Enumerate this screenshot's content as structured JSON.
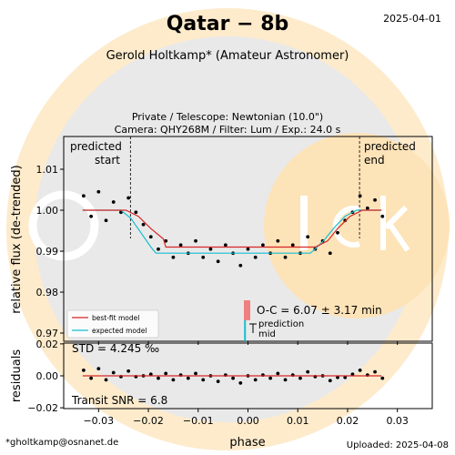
{
  "header": {
    "title": "Qatar − 8b",
    "date": "2025-04-01",
    "observer": "Gerold Holtkamp* (Amateur Astronomer)",
    "subtitle_line1": "Private / Telescope: Newtonian (10.0\")",
    "subtitle_line2": "Camera: QHY268M / Filter: Lum / Exp.: 24.0 s"
  },
  "footer": {
    "email": "*gholtkamp@osnanet.de",
    "uploaded": "Uploaded: 2025-04-08"
  },
  "watermark": {
    "text": "exoclock",
    "colors": [
      "#fde9c9",
      "#e8e8e8"
    ]
  },
  "annotations": {
    "predicted_start": [
      "predicted",
      "start"
    ],
    "predicted_end": [
      "predicted",
      "end"
    ],
    "oc": "O-C = 6.07 ± 3.17 min",
    "prediction_mid": [
      "prediction",
      "mid"
    ],
    "std": "STD = 4.245 ‰",
    "snr": "Transit SNR = 6.8"
  },
  "legend": {
    "best_fit": "best-fit model",
    "expected": "expected model"
  },
  "chart_data": {
    "type": "scatter",
    "xlabel": "phase",
    "ylabel_top": "relative flux (de-trended)",
    "ylabel_bottom": "residuals",
    "xlim": [
      -0.037,
      0.037
    ],
    "ylim_top": [
      0.968,
      1.018
    ],
    "ylim_bottom": [
      -0.0205,
      0.0205
    ],
    "x_ticks": [
      -0.03,
      -0.02,
      -0.01,
      0.0,
      0.01,
      0.02,
      0.03
    ],
    "x_tick_labels": [
      "−0.03",
      "−0.02",
      "−0.01",
      "0.00",
      "0.01",
      "0.02",
      "0.03"
    ],
    "y_ticks_top": [
      0.97,
      0.98,
      0.99,
      1.0,
      1.01
    ],
    "y_tick_labels_top": [
      "0.97",
      "0.98",
      "0.99",
      "1.00",
      "1.01"
    ],
    "y_ticks_bottom": [
      -0.02,
      0.0,
      0.02
    ],
    "y_tick_labels_bottom": [
      "−0.02",
      "0.00",
      "0.02"
    ],
    "predicted_start": -0.0236,
    "predicted_end": 0.0224,
    "predicted_mid": -0.0006,
    "best_fit": {
      "color": "#d62728",
      "x": [
        -0.0332,
        -0.0245,
        -0.022,
        -0.0195,
        -0.017,
        -0.0165,
        0.0135,
        0.016,
        0.018,
        0.0205,
        0.023,
        0.0268
      ],
      "y": [
        1.0,
        1.0,
        0.9985,
        0.9955,
        0.993,
        0.991,
        0.991,
        0.9925,
        0.9955,
        0.9985,
        1.0,
        1.0
      ]
    },
    "expected": {
      "color": "#17becf",
      "x": [
        -0.0332,
        -0.0255,
        -0.0235,
        -0.0215,
        -0.0195,
        -0.0185,
        0.0125,
        0.0135,
        0.0155,
        0.0175,
        0.0195,
        0.0218,
        0.0268
      ],
      "y": [
        1.0,
        1.0,
        0.998,
        0.9945,
        0.991,
        0.9895,
        0.9895,
        0.9905,
        0.993,
        0.996,
        0.9985,
        1.0,
        1.0
      ]
    },
    "flux_points": {
      "color": "#000000",
      "x": [
        -0.033,
        -0.0315,
        -0.03,
        -0.0285,
        -0.027,
        -0.0255,
        -0.024,
        -0.0225,
        -0.021,
        -0.0195,
        -0.018,
        -0.0165,
        -0.015,
        -0.0135,
        -0.012,
        -0.0105,
        -0.009,
        -0.0075,
        -0.006,
        -0.0045,
        -0.003,
        -0.0015,
        0.0,
        0.0015,
        0.003,
        0.0045,
        0.006,
        0.0075,
        0.009,
        0.0105,
        0.012,
        0.0135,
        0.015,
        0.0165,
        0.018,
        0.0195,
        0.021,
        0.0225,
        0.024,
        0.0255,
        0.027
      ],
      "y": [
        1.0035,
        0.9985,
        1.0045,
        0.9975,
        1.002,
        0.9995,
        1.003,
        0.9995,
        0.9965,
        0.9935,
        0.9905,
        0.9925,
        0.9885,
        0.9915,
        0.9895,
        0.9925,
        0.9885,
        0.9905,
        0.9875,
        0.9915,
        0.9895,
        0.9865,
        0.9905,
        0.9885,
        0.9915,
        0.9895,
        0.9925,
        0.9885,
        0.9915,
        0.9895,
        0.9935,
        0.9905,
        0.9925,
        0.9895,
        0.9945,
        0.9975,
        0.9995,
        1.0035,
        1.0005,
        1.0025,
        0.9985
      ]
    },
    "residual_points": {
      "color": "#000000",
      "x": [
        -0.033,
        -0.0315,
        -0.03,
        -0.0285,
        -0.027,
        -0.0255,
        -0.024,
        -0.0225,
        -0.021,
        -0.0195,
        -0.018,
        -0.0165,
        -0.015,
        -0.0135,
        -0.012,
        -0.0105,
        -0.009,
        -0.0075,
        -0.006,
        -0.0045,
        -0.003,
        -0.0015,
        0.0,
        0.0015,
        0.003,
        0.0045,
        0.006,
        0.0075,
        0.009,
        0.0105,
        0.012,
        0.0135,
        0.015,
        0.0165,
        0.018,
        0.0195,
        0.021,
        0.0225,
        0.024,
        0.0255,
        0.027
      ],
      "y": [
        0.0035,
        -0.0015,
        0.0045,
        -0.0025,
        0.002,
        -0.0005,
        0.003,
        -0.0005,
        0.0,
        0.001,
        -0.0015,
        0.0015,
        -0.0025,
        0.0005,
        -0.0015,
        0.0015,
        -0.0025,
        0.0,
        -0.0035,
        0.0005,
        -0.0015,
        -0.0045,
        0.0,
        -0.0025,
        0.0005,
        -0.0015,
        0.0015,
        -0.0025,
        0.0005,
        -0.0015,
        0.0025,
        -0.0005,
        0.0,
        -0.003,
        -0.001,
        -0.001,
        0.001,
        0.0035,
        0.0005,
        0.0025,
        -0.0015
      ]
    }
  }
}
